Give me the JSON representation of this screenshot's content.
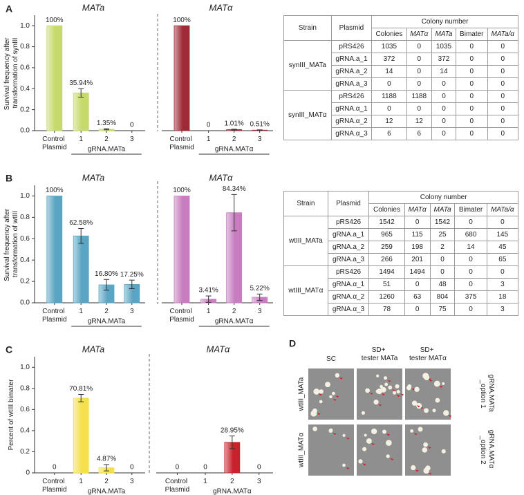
{
  "panel_labels": [
    "A",
    "B",
    "C",
    "D"
  ],
  "chart_data": [
    {
      "type": "bar",
      "title": "MATa",
      "ylabel": "Survival frequency after transformation of synIII",
      "categories": [
        "Control Plasmid",
        "1",
        "2",
        "3"
      ],
      "group_label": "gRNA.MATa",
      "values": [
        1,
        0.3594,
        0.0135,
        0
      ],
      "value_labels": [
        "100%",
        "35.94%",
        "1.35%",
        "0"
      ],
      "errors": [
        null,
        0.04,
        0.005,
        null
      ],
      "color": "#c5da6b",
      "ylim": [
        0,
        1.1
      ],
      "yticks": [
        {
          "value": 0,
          "label": "0.0"
        },
        0.2,
        0.4,
        0.6,
        0.8,
        {
          "value": 1,
          "label": "1.0"
        }
      ]
    },
    {
      "type": "bar",
      "title": "MATα",
      "categories": [
        "Control Plasmid",
        "1",
        "2",
        "3"
      ],
      "group_label": "gRNA.MATα",
      "values": [
        1,
        0,
        0.0101,
        0.0051
      ],
      "value_labels": [
        "100%",
        "0",
        "1.01%",
        "0.51%"
      ],
      "errors": [
        null,
        null,
        0.004,
        0.003
      ],
      "color": "#9e2a36",
      "ylim": [
        0,
        1.1
      ]
    },
    {
      "type": "bar",
      "title": "MATa",
      "ylabel": "Survival frequency after transformation of wtIII",
      "categories": [
        "Control Plasmid",
        "1",
        "2",
        "3"
      ],
      "group_label": "gRNA.MATa",
      "values": [
        1,
        0.6258,
        0.168,
        0.1725
      ],
      "value_labels": [
        "100%",
        "62.58%",
        "16.80%",
        "17.25%"
      ],
      "errors": [
        null,
        0.07,
        0.05,
        0.04
      ],
      "color": "#5aa5c3",
      "ylim": [
        0,
        1.1
      ],
      "yticks": [
        {
          "value": 0,
          "label": "0.0"
        },
        0.2,
        0.4,
        0.6,
        0.8,
        {
          "value": 1,
          "label": "1.0"
        }
      ]
    },
    {
      "type": "bar",
      "title": "MATα",
      "categories": [
        "Control Plasmid",
        "1",
        "2",
        "3"
      ],
      "group_label": "gRNA.MATα",
      "values": [
        1,
        0.0341,
        0.8434,
        0.0522
      ],
      "value_labels": [
        "100%",
        "3.41%",
        "84.34%",
        "5.22%"
      ],
      "errors": [
        null,
        0.03,
        0.17,
        0.03
      ],
      "color": "#c77dbf",
      "ylim": [
        0,
        1.1
      ]
    },
    {
      "type": "bar",
      "title": "MATa",
      "ylabel": "Percent of wtIII bimater",
      "categories": [
        "Control Plasmid",
        "1",
        "2",
        "3"
      ],
      "group_label": "gRNA.MATa",
      "values": [
        0,
        0.7081,
        0.0487,
        0
      ],
      "value_labels": [
        "0",
        "70.81%",
        "4.87%",
        "0"
      ],
      "errors": [
        null,
        0.035,
        0.03,
        null
      ],
      "color": "#f4df4c",
      "ylim": [
        0,
        1.1
      ],
      "yticks": [
        0,
        0.2,
        0.4,
        0.6,
        0.8,
        {
          "value": 1,
          "label": "1.0"
        }
      ]
    },
    {
      "type": "bar",
      "title": "MATα",
      "categories": [
        "Control Plasmid",
        "1",
        "2",
        "3"
      ],
      "group_label": "gRNA.MATα",
      "values": [
        0,
        0,
        0.2895,
        0
      ],
      "value_labels": [
        "0",
        "0",
        "28.95%",
        "0"
      ],
      "errors": [
        null,
        null,
        0.06,
        null
      ],
      "color": "#c8232c",
      "ylim": [
        0,
        1.1
      ]
    }
  ],
  "tables": [
    {
      "header": [
        "Strain",
        "Plasmid",
        "Colony number"
      ],
      "subheader": [
        "Colonies",
        "MATα",
        "MATa",
        "Bimater",
        "MATa/α"
      ],
      "groups": [
        {
          "strain": "synIII_MATa",
          "rows": [
            [
              "pRS426",
              1035,
              0,
              1035,
              0,
              0
            ],
            [
              "gRNA.a_1",
              372,
              0,
              372,
              0,
              0
            ],
            [
              "gRNA.a_2",
              14,
              0,
              14,
              0,
              0
            ],
            [
              "gRNA.a_3",
              0,
              0,
              0,
              0,
              0
            ]
          ]
        },
        {
          "strain": "synIII_MATα",
          "rows": [
            [
              "pRS426",
              1188,
              1188,
              0,
              0,
              0
            ],
            [
              "gRNA.α_1",
              0,
              0,
              0,
              0,
              0
            ],
            [
              "gRNA.α_2",
              12,
              12,
              0,
              0,
              0
            ],
            [
              "gRNA.α_3",
              6,
              6,
              0,
              0,
              0
            ]
          ]
        }
      ]
    },
    {
      "header": [
        "Strain",
        "Plasmid",
        "Colony number"
      ],
      "subheader": [
        "Colonies",
        "MATα",
        "MATa",
        "Bimater",
        "MATa/α"
      ],
      "groups": [
        {
          "strain": "wtIII_MATa",
          "rows": [
            [
              "pRS426",
              1542,
              0,
              1542,
              0,
              0
            ],
            [
              "gRNA.a_1",
              965,
              115,
              25,
              680,
              145
            ],
            [
              "gRNA.a_2",
              259,
              198,
              2,
              14,
              45
            ],
            [
              "gRNA.a_3",
              266,
              201,
              0,
              0,
              65
            ]
          ]
        },
        {
          "strain": "wtIII_MATα",
          "rows": [
            [
              "pRS426",
              1494,
              1494,
              0,
              0,
              0
            ],
            [
              "gRNA.α_1",
              51,
              0,
              48,
              0,
              3
            ],
            [
              "gRNA.α_2",
              1260,
              63,
              804,
              375,
              18
            ],
            [
              "gRNA.α_3",
              78,
              0,
              75,
              0,
              3
            ]
          ]
        }
      ]
    }
  ],
  "panel_d": {
    "columns": [
      "SC",
      "SD+ tester MATa",
      "SD+ tester MATα"
    ],
    "rows": [
      "wtIII_MATa",
      "wtIII_MATα"
    ],
    "row_notes": [
      "gRNA.MATa _option 1",
      "gRNA.MATα _option 2"
    ]
  }
}
